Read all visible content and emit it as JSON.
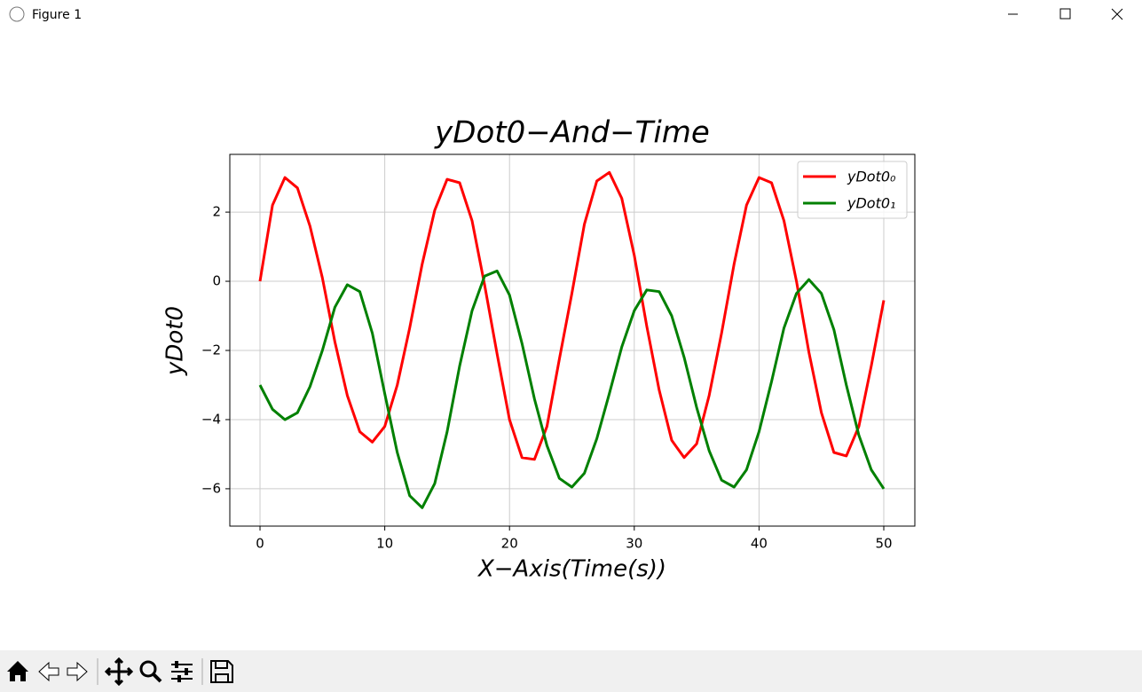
{
  "window": {
    "title": "Figure 1"
  },
  "chart_data": {
    "type": "line",
    "title": "yDot0−And−Time",
    "xlabel": "X−Axis(Time(s))",
    "ylabel": "yDot0",
    "x": [
      0,
      1,
      2,
      3,
      4,
      5,
      6,
      7,
      8,
      9,
      10,
      11,
      12,
      13,
      14,
      15,
      16,
      17,
      18,
      19,
      20,
      21,
      22,
      23,
      24,
      25,
      26,
      27,
      28,
      29,
      30,
      31,
      32,
      33,
      34,
      35,
      36,
      37,
      38,
      39,
      40,
      41,
      42,
      43,
      44,
      45,
      46,
      47,
      48,
      49,
      50
    ],
    "series": [
      {
        "name": "yDot0₀",
        "color": "#ff0000",
        "values": [
          0,
          2.2,
          3.0,
          2.7,
          1.6,
          0.1,
          -1.75,
          -3.3,
          -4.35,
          -4.65,
          -4.2,
          -3.0,
          -1.35,
          0.5,
          2.05,
          2.95,
          2.85,
          1.75,
          -0.1,
          -2.1,
          -4.0,
          -5.1,
          -5.15,
          -4.2,
          -2.25,
          -0.35,
          1.65,
          2.9,
          3.15,
          2.4,
          0.75,
          -1.3,
          -3.15,
          -4.6,
          -5.1,
          -4.7,
          -3.3,
          -1.5,
          0.5,
          2.2,
          3.0,
          2.85,
          1.75,
          0.0,
          -2.05,
          -3.8,
          -4.95,
          -5.05,
          -4.2,
          -2.45,
          -0.55
        ]
      },
      {
        "name": "yDot0₁",
        "color": "#008000",
        "values": [
          -3.0,
          -3.7,
          -4.0,
          -3.8,
          -3.05,
          -2.0,
          -0.75,
          -0.1,
          -0.3,
          -1.5,
          -3.25,
          -4.95,
          -6.2,
          -6.55,
          -5.85,
          -4.35,
          -2.45,
          -0.85,
          0.15,
          0.3,
          -0.4,
          -1.8,
          -3.4,
          -4.75,
          -5.7,
          -5.95,
          -5.55,
          -4.55,
          -3.25,
          -1.9,
          -0.85,
          -0.25,
          -0.3,
          -1.0,
          -2.2,
          -3.65,
          -4.9,
          -5.75,
          -5.95,
          -5.45,
          -4.35,
          -2.9,
          -1.35,
          -0.35,
          0.05,
          -0.35,
          -1.4,
          -3.0,
          -4.45,
          -5.45,
          -6.0
        ]
      }
    ],
    "xlim": [
      -2.42,
      52.49
    ],
    "ylim": [
      -7.08,
      3.67
    ],
    "xticks": [
      0,
      10,
      20,
      30,
      40,
      50
    ],
    "yticks": [
      {
        "value": -6,
        "label": "−6"
      },
      {
        "value": -4,
        "label": "−4"
      },
      {
        "value": -2,
        "label": "−2"
      },
      0,
      2
    ],
    "grid": true,
    "legend": "upper right"
  }
}
